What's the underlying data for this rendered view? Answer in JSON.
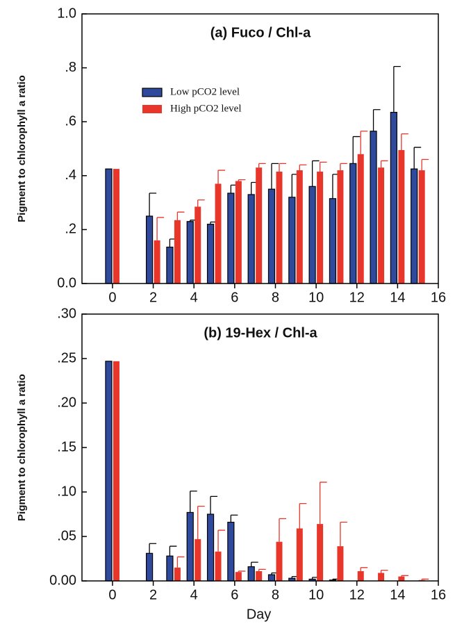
{
  "chart_data": [
    {
      "type": "bar",
      "title": "(a) Fuco / Chl-a",
      "ylabel": "Pigment to chlorophyll a ratio",
      "x": [
        0,
        2,
        3,
        4,
        5,
        6,
        7,
        8,
        9,
        10,
        11,
        12,
        13,
        14,
        15
      ],
      "series": [
        {
          "name": "Low pCO2 level",
          "color": "#2f4a9c",
          "edgecolor": "#000000",
          "error_color": "#000000",
          "values": [
            0.425,
            0.25,
            0.135,
            0.23,
            0.22,
            0.335,
            0.33,
            0.35,
            0.32,
            0.36,
            0.315,
            0.445,
            0.565,
            0.635,
            0.425
          ],
          "errors": [
            null,
            0.085,
            0.03,
            0.005,
            0.008,
            0.03,
            0.045,
            0.095,
            0.085,
            0.095,
            0.09,
            0.1,
            0.08,
            0.17,
            0.08
          ]
        },
        {
          "name": "High pCO2 level",
          "color": "#e8362a",
          "error_color": "#e8362a",
          "values": [
            0.425,
            0.16,
            0.235,
            0.285,
            0.37,
            0.38,
            0.43,
            0.415,
            0.42,
            0.415,
            0.42,
            0.48,
            0.43,
            0.495,
            0.42
          ],
          "errors": [
            null,
            0.085,
            0.03,
            0.025,
            0.05,
            0.005,
            0.015,
            0.03,
            0.02,
            0.035,
            0.025,
            0.085,
            0.025,
            0.06,
            0.04
          ]
        }
      ],
      "xlim": [
        -1.5,
        16
      ],
      "xticks": [
        0,
        2,
        4,
        6,
        8,
        10,
        12,
        14,
        16
      ],
      "ylim": [
        0,
        1
      ],
      "yticks": [
        {
          "value": 0,
          "label": "0.0"
        },
        {
          "value": 0.2,
          "label": ".2"
        },
        {
          "value": 0.4,
          "label": ".4"
        },
        {
          "value": 0.6,
          "label": ".6"
        },
        {
          "value": 0.8,
          "label": ".8"
        },
        {
          "value": 1,
          "label": "1.0"
        }
      ],
      "legend": "upper left"
    },
    {
      "type": "bar",
      "title": "(b) 19-Hex / Chl-a",
      "ylabel": "Pigment to chlorophyll a ratio",
      "xlabel": "Day",
      "x": [
        0,
        2,
        3,
        4,
        5,
        6,
        7,
        8,
        9,
        10,
        11,
        12,
        13,
        14,
        15
      ],
      "series": [
        {
          "color": "#2f4a9c",
          "edgecolor": "#000000",
          "error_color": "#000000",
          "values": [
            0.247,
            0.031,
            0.028,
            0.077,
            0.075,
            0.066,
            0.016,
            0.007,
            0.003,
            0.002,
            0.001,
            0,
            0,
            0,
            0
          ],
          "errors": [
            null,
            0.011,
            0.011,
            0.024,
            0.02,
            0.008,
            0.005,
            0.002,
            0.002,
            0.002,
            0.001,
            null,
            null,
            null,
            null
          ]
        },
        {
          "color": "#e8362a",
          "error_color": "#e8362a",
          "values": [
            0.247,
            0,
            0.015,
            0.047,
            0.033,
            0.01,
            0.011,
            0.044,
            0.059,
            0.064,
            0.039,
            0.011,
            0.009,
            0.005,
            0.001
          ],
          "errors": [
            null,
            null,
            0.012,
            0.037,
            0.024,
            0.001,
            0.002,
            0.026,
            0.028,
            0.047,
            0.027,
            0.004,
            0.003,
            0.001,
            0.001
          ]
        }
      ],
      "xlim": [
        -1.5,
        16
      ],
      "xticks": [
        0,
        2,
        4,
        6,
        8,
        10,
        12,
        14,
        16
      ],
      "ylim": [
        0,
        0.3
      ],
      "yticks": [
        {
          "value": 0,
          "label": "0.00"
        },
        {
          "value": 0.05,
          "label": ".05"
        },
        {
          "value": 0.1,
          "label": ".10"
        },
        {
          "value": 0.15,
          "label": ".15"
        },
        {
          "value": 0.2,
          "label": ".20"
        },
        {
          "value": 0.25,
          "label": ".25"
        },
        {
          "value": 0.3,
          "label": ".30"
        }
      ]
    }
  ]
}
